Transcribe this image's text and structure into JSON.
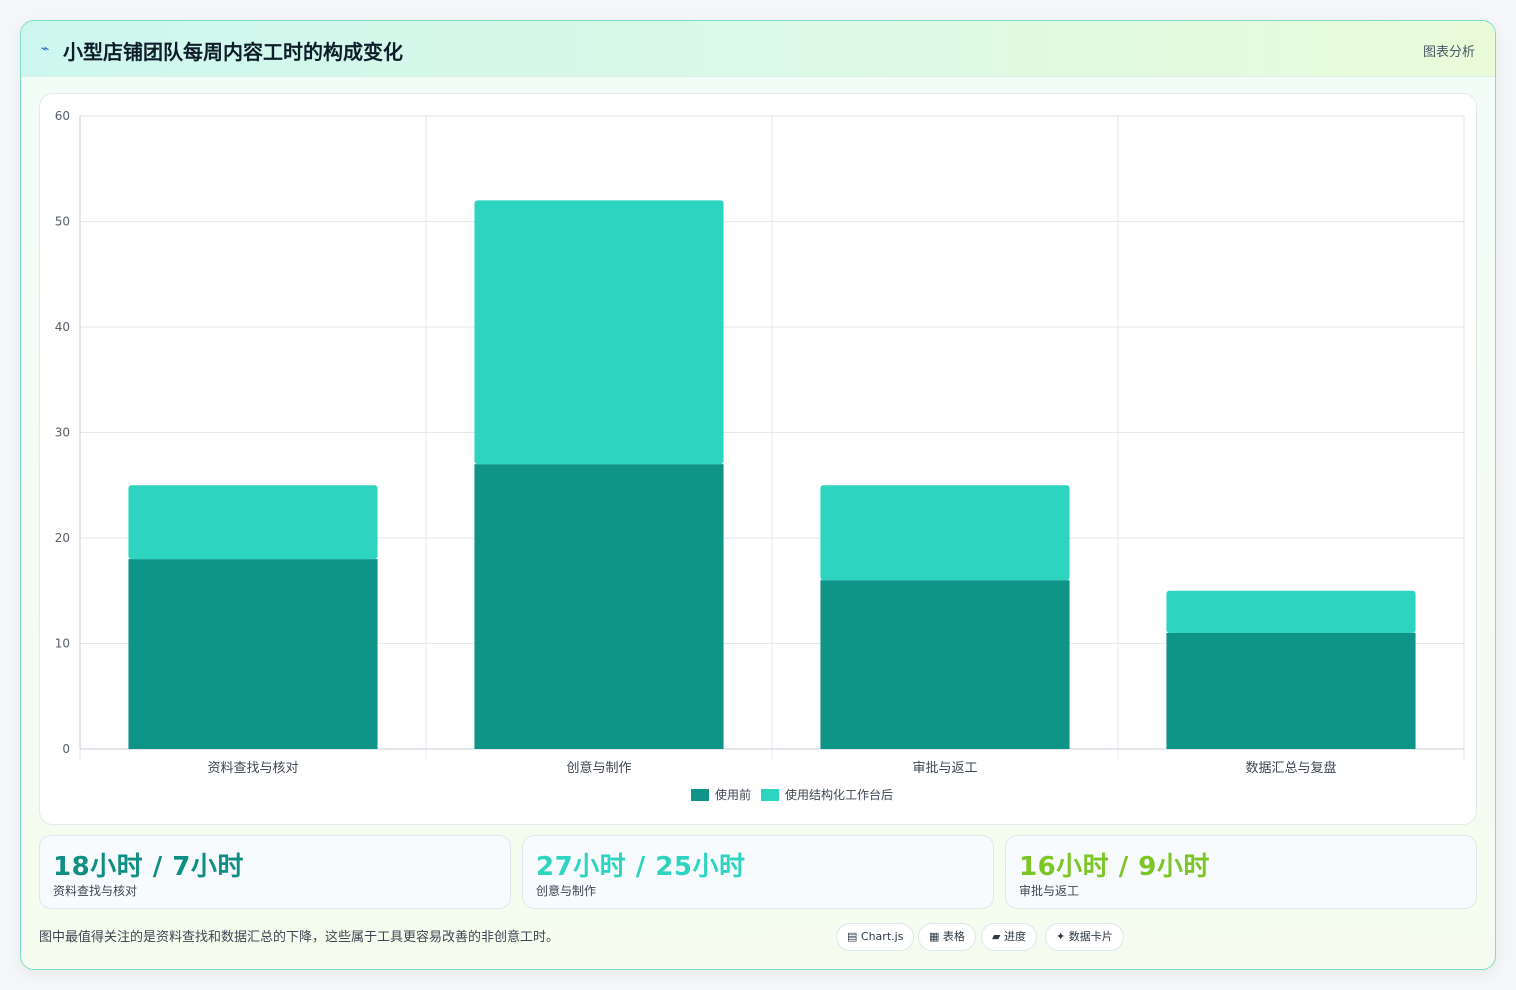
{
  "header": {
    "logo_icon": "⌁",
    "title": "小型店铺团队每周内容工时的构成变化",
    "tag": "图表分析"
  },
  "chart_data": {
    "type": "bar",
    "stacked": true,
    "categories": [
      "资料查找与核对",
      "创意与制作",
      "审批与返工",
      "数据汇总与复盘"
    ],
    "series": [
      {
        "name": "使用前",
        "values": [
          18,
          27,
          16,
          11
        ],
        "color": "#0f9488"
      },
      {
        "name": "使用结构化工作台后",
        "values": [
          7,
          25,
          9,
          4
        ],
        "color": "#2dd4bf"
      }
    ],
    "ylim": [
      0,
      60
    ],
    "yticks": [
      0,
      10,
      20,
      30,
      40,
      50,
      60
    ],
    "grid": true,
    "legend": "bottom-center"
  },
  "stats": [
    {
      "value": "18小时 / 7小时",
      "label": "资料查找与核对",
      "color": "#0f8f84"
    },
    {
      "value": "27小时 / 25小时",
      "label": "创意与制作",
      "color": "#2dd4bf"
    },
    {
      "value": "16小时 / 9小时",
      "label": "审批与返工",
      "color": "#7cc625"
    }
  ],
  "footnote": "图中最值得关注的是资料查找和数据汇总的下降，这些属于工具更容易改善的非创意工时。",
  "pills": [
    {
      "icon": "chart-icon",
      "glyph": "▤",
      "label": "Chart.js"
    },
    {
      "icon": "table-icon",
      "glyph": "▦",
      "label": "表格"
    },
    {
      "icon": "progress-icon",
      "glyph": "▰",
      "label": "进度"
    },
    {
      "icon": "sparkle-icon",
      "glyph": "✦",
      "label": "数据卡片"
    }
  ]
}
